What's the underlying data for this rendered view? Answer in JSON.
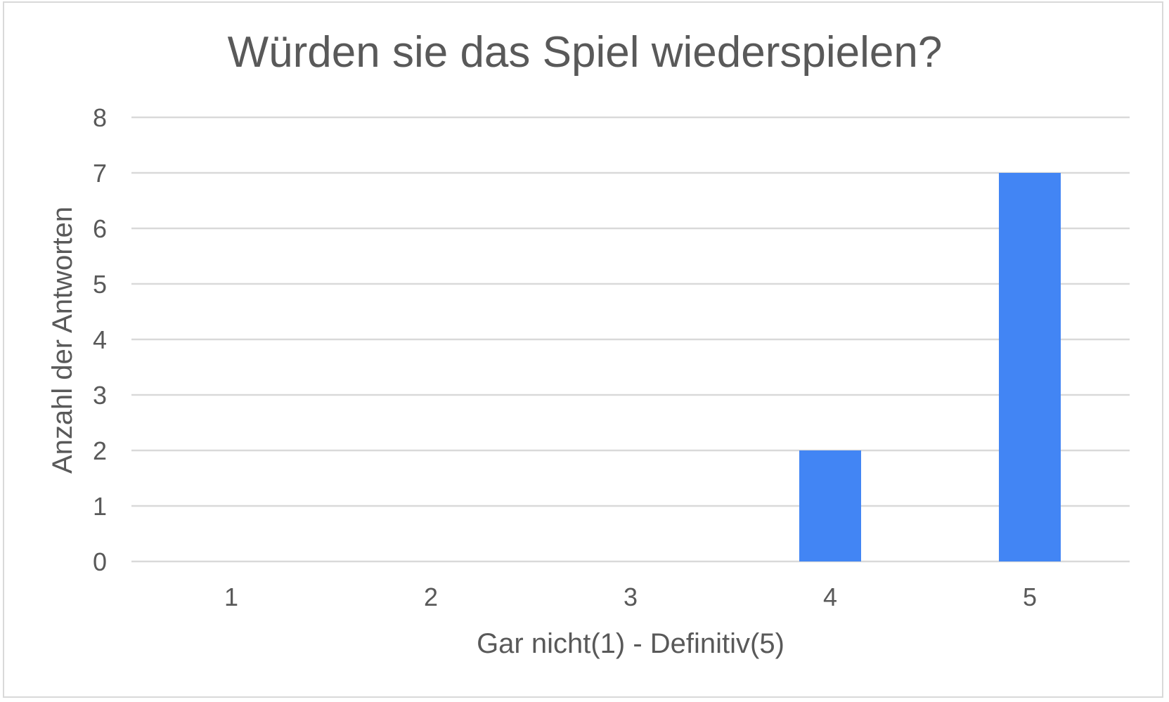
{
  "chart_data": {
    "type": "bar",
    "title": "Würden sie das Spiel wiederspielen?",
    "xlabel": "Gar nicht(1) - Definitiv(5)",
    "ylabel": "Anzahl der Antworten",
    "categories": [
      "1",
      "2",
      "3",
      "4",
      "5"
    ],
    "values": [
      0,
      0,
      0,
      2,
      7
    ],
    "ylim": [
      0,
      8
    ],
    "yticks": [
      "0",
      "1",
      "2",
      "3",
      "4",
      "5",
      "6",
      "7",
      "8"
    ],
    "grid": true,
    "legend": "none",
    "bar_color": "#4285f4",
    "gridline_color": "#d9d9d9",
    "text_color": "#595959"
  }
}
